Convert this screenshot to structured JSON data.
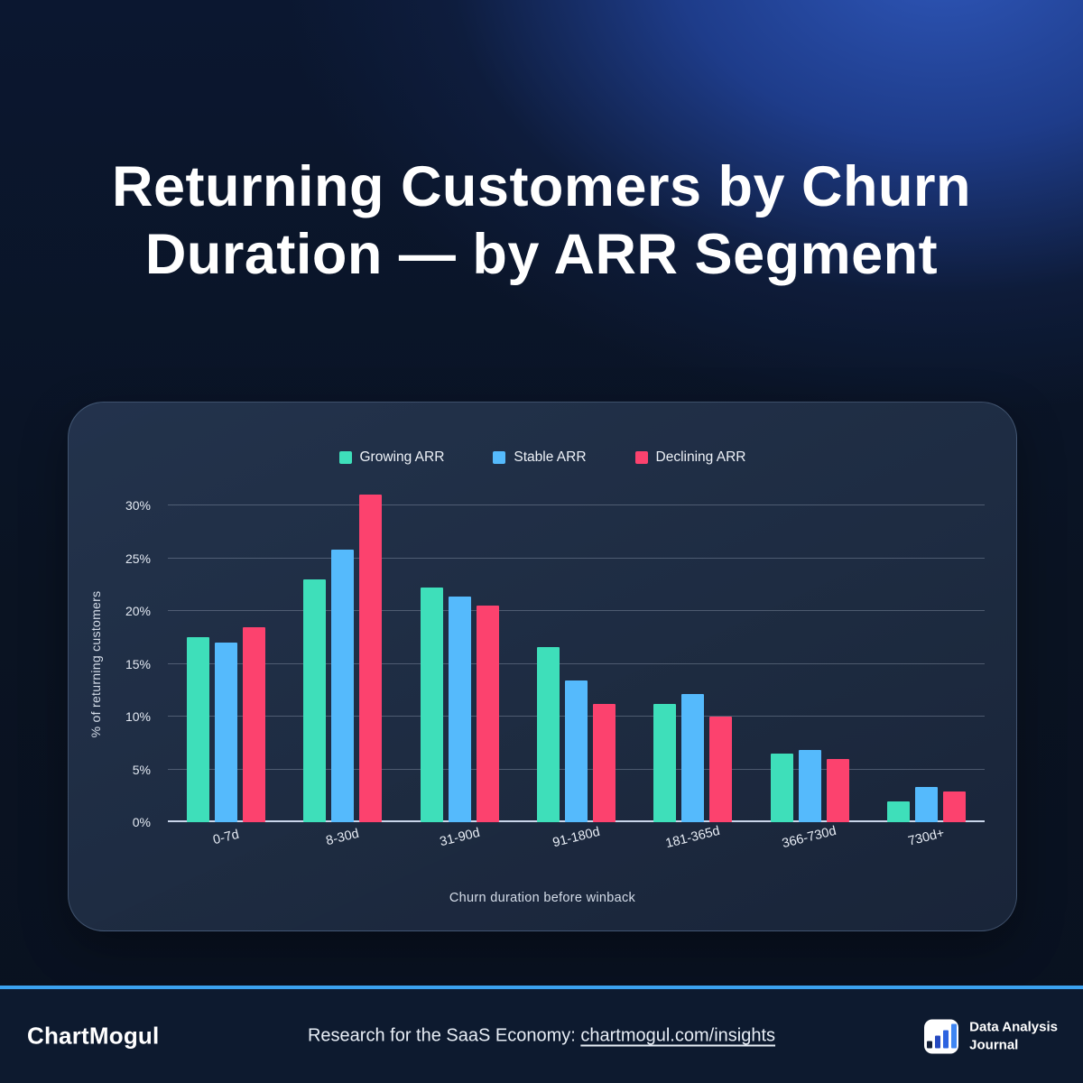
{
  "page": {
    "title": "Returning Customers by Churn Duration — by ARR Segment",
    "title_lines": [
      "Returning Customers by Churn",
      "Duration — by ARR Segment"
    ]
  },
  "chart_data": {
    "type": "bar",
    "title": "Returning Customers by Churn Duration — by ARR Segment",
    "categories": [
      "0-7d",
      "8-30d",
      "31-90d",
      "91-180d",
      "181-365d",
      "366-730d",
      "730d+"
    ],
    "series": [
      {
        "name": "Growing ARR",
        "color": "#3EDFBA",
        "values": [
          17.5,
          23.0,
          22.2,
          16.6,
          11.2,
          6.5,
          2.0
        ]
      },
      {
        "name": "Stable ARR",
        "color": "#55BAFC",
        "values": [
          17.0,
          25.8,
          21.4,
          13.4,
          12.1,
          6.8,
          3.3
        ]
      },
      {
        "name": "Declining ARR",
        "color": "#FC426E",
        "values": [
          18.5,
          31.0,
          20.5,
          11.2,
          10.0,
          6.0,
          2.9
        ]
      }
    ],
    "xlabel": "Churn duration before winback",
    "ylabel": "% of returning customers",
    "ylim": [
      0,
      30
    ],
    "ytick_step": 5,
    "ytick_labels": [
      "0%",
      "5%",
      "10%",
      "15%",
      "20%",
      "25%",
      "30%"
    ],
    "grid": true,
    "legend_position": "top"
  },
  "footer": {
    "brand": "ChartMogul",
    "tagline_prefix": "Research for the SaaS Economy: ",
    "tagline_link": "chartmogul.com/insights",
    "badge": {
      "icon": "bar-chart-icon",
      "line1": "Data Analysis",
      "line2": "Journal"
    }
  },
  "colors": {
    "accent_divider": "#3ba2f0",
    "card_background": "#1e2c42",
    "page_glow": "#2e56b8",
    "text_primary": "#ffffff"
  }
}
